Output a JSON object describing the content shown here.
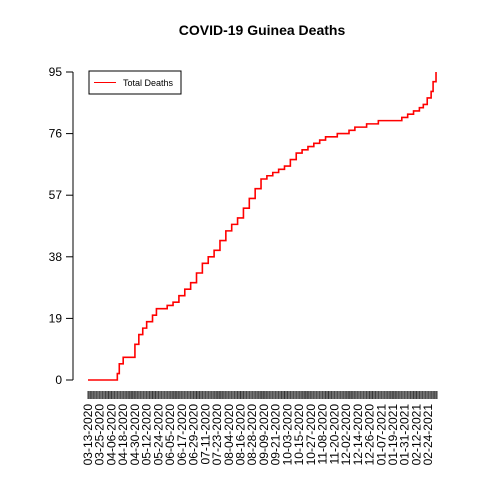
{
  "chart_data": {
    "type": "line",
    "title": "COVID-19 Guinea Deaths",
    "xlabel": "",
    "ylabel": "",
    "ylim": [
      0,
      95
    ],
    "yticks": [
      0,
      19,
      38,
      57,
      76,
      95
    ],
    "x_tick_labels": [
      "03-13-2020",
      "03-25-2020",
      "04-06-2020",
      "04-18-2020",
      "04-30-2020",
      "05-12-2020",
      "05-24-2020",
      "06-05-2020",
      "06-17-2020",
      "06-29-2020",
      "07-11-2020",
      "07-23-2020",
      "08-04-2020",
      "08-16-2020",
      "08-28-2020",
      "09-09-2020",
      "09-21-2020",
      "10-03-2020",
      "10-15-2020",
      "10-27-2020",
      "11-08-2020",
      "11-20-2020",
      "12-02-2020",
      "12-14-2020",
      "12-26-2020",
      "01-07-2021",
      "01-19-2021",
      "01-31-2021",
      "02-12-2021",
      "02-24-2021"
    ],
    "legend": {
      "position": "top-left",
      "entries": [
        "Total Deaths"
      ]
    },
    "grid": false,
    "series": [
      {
        "name": "Total Deaths",
        "color": "#ff0000",
        "x": [
          "03-13-2020",
          "04-08-2020",
          "04-12-2020",
          "04-14-2020",
          "04-18-2020",
          "04-24-2020",
          "04-30-2020",
          "05-04-2020",
          "05-08-2020",
          "05-12-2020",
          "05-18-2020",
          "05-22-2020",
          "06-02-2020",
          "06-08-2020",
          "06-14-2020",
          "06-20-2020",
          "06-26-2020",
          "07-02-2020",
          "07-08-2020",
          "07-14-2020",
          "07-20-2020",
          "07-26-2020",
          "08-01-2020",
          "08-07-2020",
          "08-13-2020",
          "08-19-2020",
          "08-25-2020",
          "08-31-2020",
          "09-06-2020",
          "09-12-2020",
          "09-18-2020",
          "09-24-2020",
          "09-30-2020",
          "10-06-2020",
          "10-12-2020",
          "10-18-2020",
          "10-24-2020",
          "10-30-2020",
          "11-05-2020",
          "11-11-2020",
          "11-17-2020",
          "11-23-2020",
          "11-29-2020",
          "12-05-2020",
          "12-11-2020",
          "12-17-2020",
          "12-23-2020",
          "12-29-2020",
          "01-04-2021",
          "01-10-2021",
          "01-16-2021",
          "01-22-2021",
          "01-28-2021",
          "02-03-2021",
          "02-09-2021",
          "02-15-2021",
          "02-19-2021",
          "02-23-2021",
          "02-27-2021",
          "03-01-2021",
          "03-04-2021"
        ],
        "values": [
          0,
          0,
          2,
          5,
          7,
          7,
          11,
          14,
          16,
          18,
          20,
          22,
          23,
          24,
          26,
          28,
          30,
          33,
          36,
          38,
          40,
          43,
          46,
          48,
          50,
          53,
          56,
          59,
          62,
          63,
          64,
          65,
          66,
          68,
          70,
          71,
          72,
          73,
          74,
          75,
          75,
          76,
          76,
          77,
          78,
          78,
          79,
          79,
          80,
          80,
          80,
          80,
          81,
          82,
          83,
          84,
          85,
          87,
          89,
          92,
          95
        ]
      }
    ]
  }
}
